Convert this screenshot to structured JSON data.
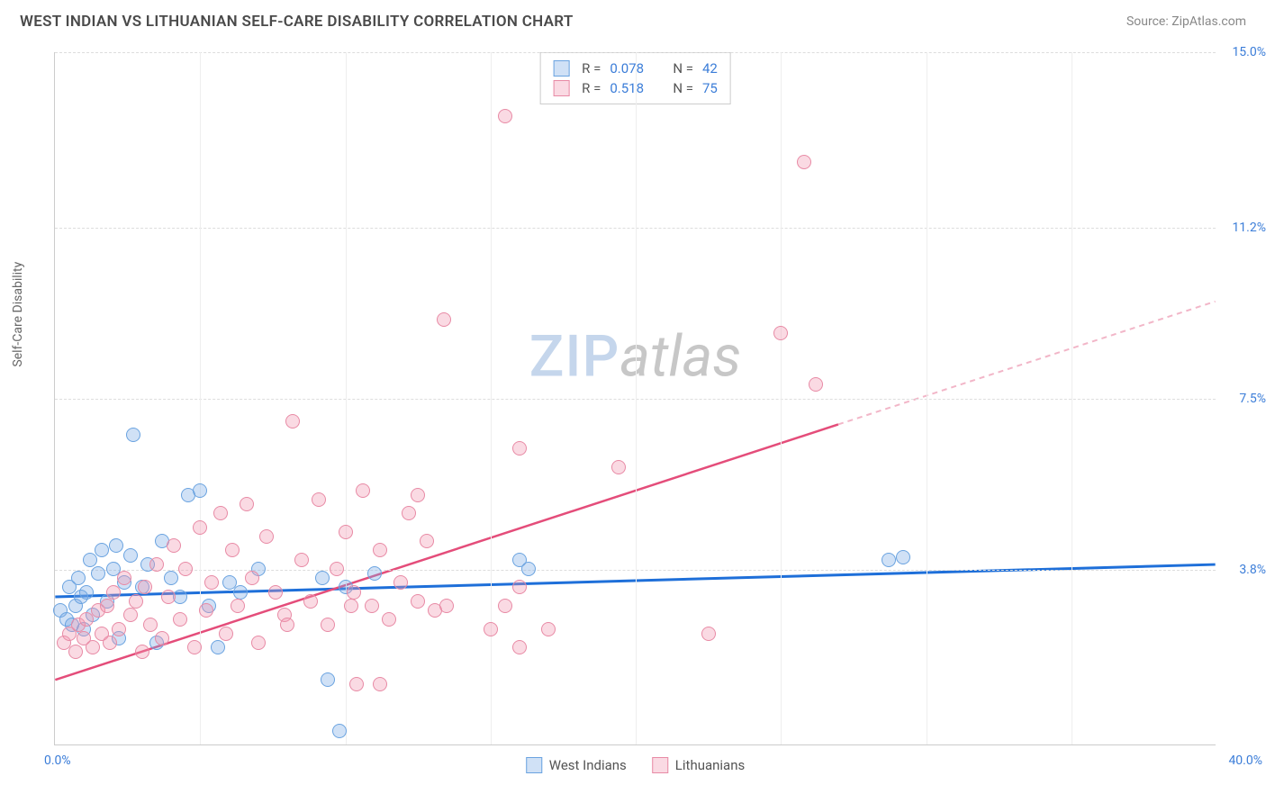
{
  "header": {
    "title": "WEST INDIAN VS LITHUANIAN SELF-CARE DISABILITY CORRELATION CHART",
    "source": "Source: ZipAtlas.com"
  },
  "chart": {
    "type": "scatter",
    "y_label": "Self-Care Disability",
    "xlim": [
      0,
      40
    ],
    "ylim": [
      0,
      15
    ],
    "x_tick_left": "0.0%",
    "x_tick_right": "40.0%",
    "y_ticks": [
      {
        "v": 3.8,
        "label": "3.8%"
      },
      {
        "v": 7.5,
        "label": "7.5%"
      },
      {
        "v": 11.2,
        "label": "11.2%"
      },
      {
        "v": 15.0,
        "label": "15.0%"
      }
    ],
    "x_grid": [
      5,
      10,
      15,
      20,
      25,
      30,
      35
    ],
    "grid_color": "#e5e5e5",
    "background_color": "#ffffff",
    "axis_color": "#cccccc",
    "tick_label_color": "#3b7dd8",
    "marker_radius": 8,
    "series": [
      {
        "id": "west_indians",
        "label": "West Indians",
        "fill": "rgba(120,170,230,0.35)",
        "stroke": "#6aa3e0",
        "trend_color": "#1e6fd9",
        "R": "0.078",
        "N": "42",
        "trend": {
          "x1": 0,
          "y1": 3.2,
          "x2": 40,
          "y2": 3.9,
          "dashed_from": null
        },
        "points": [
          [
            0.2,
            2.9
          ],
          [
            0.4,
            2.7
          ],
          [
            0.5,
            3.4
          ],
          [
            0.6,
            2.6
          ],
          [
            0.7,
            3.0
          ],
          [
            0.8,
            3.6
          ],
          [
            0.9,
            3.2
          ],
          [
            1.0,
            2.5
          ],
          [
            1.1,
            3.3
          ],
          [
            1.2,
            4.0
          ],
          [
            1.3,
            2.8
          ],
          [
            1.5,
            3.7
          ],
          [
            1.6,
            4.2
          ],
          [
            1.8,
            3.1
          ],
          [
            2.0,
            3.8
          ],
          [
            2.1,
            4.3
          ],
          [
            2.2,
            2.3
          ],
          [
            2.4,
            3.5
          ],
          [
            2.6,
            4.1
          ],
          [
            2.7,
            6.7
          ],
          [
            3.0,
            3.4
          ],
          [
            3.2,
            3.9
          ],
          [
            3.5,
            2.2
          ],
          [
            3.7,
            4.4
          ],
          [
            4.0,
            3.6
          ],
          [
            4.3,
            3.2
          ],
          [
            4.6,
            5.4
          ],
          [
            5.0,
            5.5
          ],
          [
            5.3,
            3.0
          ],
          [
            5.6,
            2.1
          ],
          [
            6.0,
            3.5
          ],
          [
            6.4,
            3.3
          ],
          [
            7.0,
            3.8
          ],
          [
            9.4,
            1.4
          ],
          [
            9.8,
            0.3
          ],
          [
            10.0,
            3.4
          ],
          [
            11.0,
            3.7
          ],
          [
            9.2,
            3.6
          ],
          [
            16.0,
            4.0
          ],
          [
            16.3,
            3.8
          ],
          [
            28.7,
            4.0
          ],
          [
            29.2,
            4.05
          ]
        ]
      },
      {
        "id": "lithuanians",
        "label": "Lithuanians",
        "fill": "rgba(240,150,175,0.35)",
        "stroke": "#e88aa5",
        "trend_color": "#e44d7a",
        "dash_color": "#f2b6c8",
        "R": "0.518",
        "N": "75",
        "trend": {
          "x1": 0,
          "y1": 1.4,
          "x2": 40,
          "y2": 9.6,
          "dashed_from": 27
        },
        "points": [
          [
            0.3,
            2.2
          ],
          [
            0.5,
            2.4
          ],
          [
            0.7,
            2.0
          ],
          [
            0.8,
            2.6
          ],
          [
            1.0,
            2.3
          ],
          [
            1.1,
            2.7
          ],
          [
            1.3,
            2.1
          ],
          [
            1.5,
            2.9
          ],
          [
            1.6,
            2.4
          ],
          [
            1.8,
            3.0
          ],
          [
            1.9,
            2.2
          ],
          [
            2.0,
            3.3
          ],
          [
            2.2,
            2.5
          ],
          [
            2.4,
            3.6
          ],
          [
            2.6,
            2.8
          ],
          [
            2.8,
            3.1
          ],
          [
            3.0,
            2.0
          ],
          [
            3.1,
            3.4
          ],
          [
            3.3,
            2.6
          ],
          [
            3.5,
            3.9
          ],
          [
            3.7,
            2.3
          ],
          [
            3.9,
            3.2
          ],
          [
            4.1,
            4.3
          ],
          [
            4.3,
            2.7
          ],
          [
            4.5,
            3.8
          ],
          [
            4.8,
            2.1
          ],
          [
            5.0,
            4.7
          ],
          [
            5.2,
            2.9
          ],
          [
            5.4,
            3.5
          ],
          [
            5.7,
            5.0
          ],
          [
            5.9,
            2.4
          ],
          [
            6.1,
            4.2
          ],
          [
            6.3,
            3.0
          ],
          [
            6.6,
            5.2
          ],
          [
            6.8,
            3.6
          ],
          [
            7.0,
            2.2
          ],
          [
            7.3,
            4.5
          ],
          [
            7.6,
            3.3
          ],
          [
            7.9,
            2.8
          ],
          [
            8.2,
            7.0
          ],
          [
            8.5,
            4.0
          ],
          [
            8.8,
            3.1
          ],
          [
            9.1,
            5.3
          ],
          [
            9.4,
            2.6
          ],
          [
            9.7,
            3.8
          ],
          [
            10.0,
            4.6
          ],
          [
            10.3,
            3.3
          ],
          [
            10.4,
            1.3
          ],
          [
            10.6,
            5.5
          ],
          [
            10.9,
            3.0
          ],
          [
            11.2,
            4.2
          ],
          [
            11.2,
            1.3
          ],
          [
            11.5,
            2.7
          ],
          [
            10.2,
            3.0
          ],
          [
            11.9,
            3.5
          ],
          [
            12.2,
            5.0
          ],
          [
            12.5,
            3.1
          ],
          [
            12.8,
            4.4
          ],
          [
            12.5,
            5.4
          ],
          [
            13.1,
            2.9
          ],
          [
            13.4,
            9.2
          ],
          [
            13.5,
            3.0
          ],
          [
            15.0,
            2.5
          ],
          [
            15.5,
            13.6
          ],
          [
            16.0,
            3.4
          ],
          [
            16.0,
            6.4
          ],
          [
            16.0,
            2.1
          ],
          [
            17.0,
            2.5
          ],
          [
            19.4,
            6.0
          ],
          [
            22.5,
            2.4
          ],
          [
            25.0,
            8.9
          ],
          [
            25.8,
            12.6
          ],
          [
            26.2,
            7.8
          ],
          [
            15.5,
            3.0
          ],
          [
            8.0,
            2.6
          ]
        ]
      }
    ],
    "legend_top": {
      "r_label": "R =",
      "n_label": "N ="
    },
    "watermark": {
      "part1": "ZIP",
      "part2": "atlas"
    }
  }
}
